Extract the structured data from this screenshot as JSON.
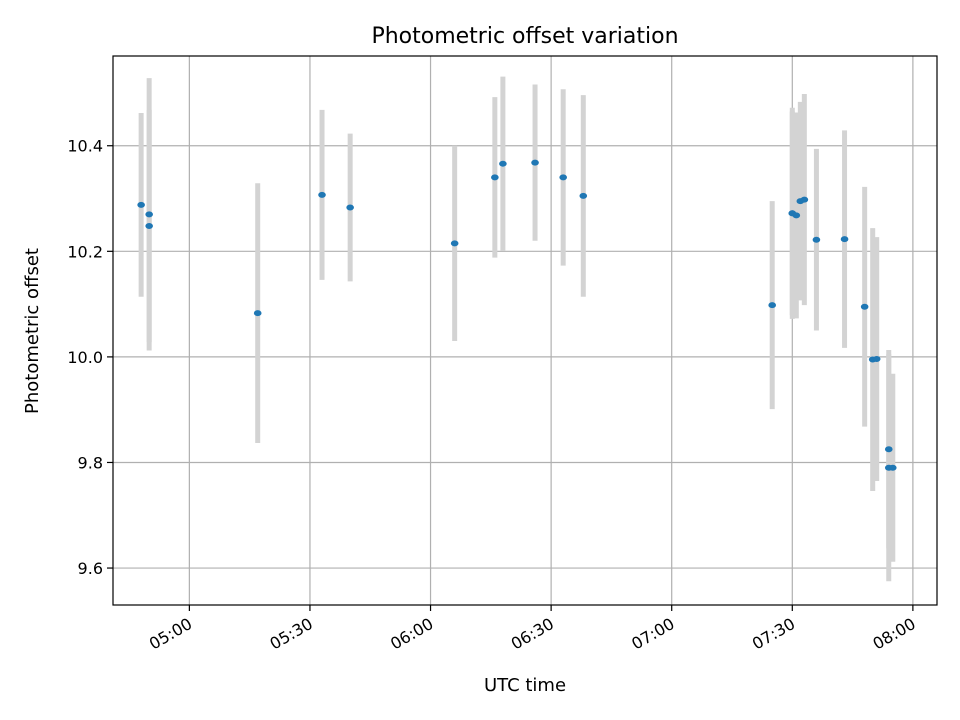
{
  "chart_data": {
    "type": "scatter",
    "title": "Photometric offset variation",
    "xlabel": "UTC time",
    "ylabel": "Photometric offset",
    "xlim": [
      "04:41",
      "08:06"
    ],
    "ylim": [
      9.53,
      10.57
    ],
    "xticks": [
      "05:00",
      "05:30",
      "06:00",
      "06:30",
      "07:00",
      "07:30",
      "08:00"
    ],
    "yticks": [
      "9.6",
      "9.8",
      "10.0",
      "10.2",
      "10.4"
    ],
    "grid": true,
    "colors": {
      "point": "#1f77b4",
      "errorbar": "#d3d3d3",
      "grid": "#b0b0b0"
    },
    "points": [
      {
        "x": "04:48",
        "y": 10.288,
        "yerr": 0.174
      },
      {
        "x": "04:50",
        "y": 10.27,
        "yerr": 0.258
      },
      {
        "x": "04:50",
        "y": 10.248,
        "yerr": 0.22
      },
      {
        "x": "05:17",
        "y": 10.083,
        "yerr": 0.246
      },
      {
        "x": "05:33",
        "y": 10.307,
        "yerr": 0.161
      },
      {
        "x": "05:40",
        "y": 10.283,
        "yerr": 0.14
      },
      {
        "x": "06:06",
        "y": 10.215,
        "yerr": 0.185
      },
      {
        "x": "06:16",
        "y": 10.34,
        "yerr": 0.152
      },
      {
        "x": "06:18",
        "y": 10.366,
        "yerr": 0.165
      },
      {
        "x": "06:26",
        "y": 10.368,
        "yerr": 0.148
      },
      {
        "x": "06:33",
        "y": 10.34,
        "yerr": 0.167
      },
      {
        "x": "06:38",
        "y": 10.305,
        "yerr": 0.191
      },
      {
        "x": "07:25",
        "y": 10.098,
        "yerr": 0.197
      },
      {
        "x": "07:30",
        "y": 10.272,
        "yerr": 0.193
      },
      {
        "x": "07:30",
        "y": 10.272,
        "yerr": 0.2
      },
      {
        "x": "07:31",
        "y": 10.268,
        "yerr": 0.195
      },
      {
        "x": "07:32",
        "y": 10.295,
        "yerr": 0.188
      },
      {
        "x": "07:33",
        "y": 10.298,
        "yerr": 0.2
      },
      {
        "x": "07:36",
        "y": 10.222,
        "yerr": 0.172
      },
      {
        "x": "07:43",
        "y": 10.223,
        "yerr": 0.206
      },
      {
        "x": "07:48",
        "y": 10.095,
        "yerr": 0.227
      },
      {
        "x": "07:50",
        "y": 9.995,
        "yerr": 0.249
      },
      {
        "x": "07:51",
        "y": 9.996,
        "yerr": 0.231
      },
      {
        "x": "07:54",
        "y": 9.825,
        "yerr": 0.188
      },
      {
        "x": "07:54",
        "y": 9.79,
        "yerr": 0.215
      },
      {
        "x": "07:55",
        "y": 9.79,
        "yerr": 0.178
      }
    ]
  }
}
